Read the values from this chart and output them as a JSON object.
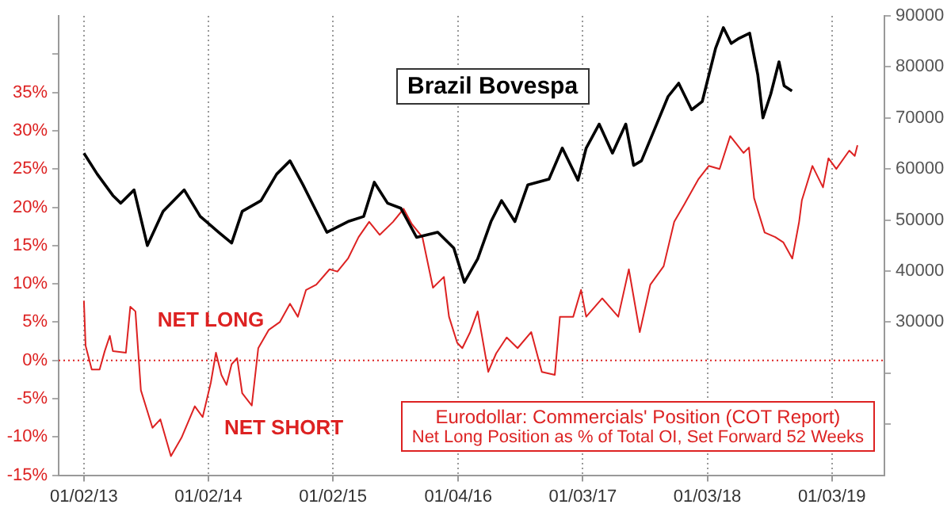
{
  "chart_data": {
    "type": "line",
    "x": [
      "2013-01-02",
      "2013-02-10",
      "2013-03-28",
      "2013-04-20",
      "2013-05-29",
      "2013-07-07",
      "2013-08-22",
      "2013-10-23",
      "2013-12-09",
      "2014-02-01",
      "2014-03-11",
      "2014-04-11",
      "2014-06-05",
      "2014-07-21",
      "2014-08-29",
      "2014-10-06",
      "2014-12-15",
      "2015-02-15",
      "2015-04-02",
      "2015-05-03",
      "2015-06-11",
      "2015-07-20",
      "2015-09-04",
      "2015-11-05",
      "2015-12-22",
      "2016-01-22",
      "2016-03-01",
      "2016-04-09",
      "2016-05-10",
      "2016-06-18",
      "2016-07-26",
      "2016-09-26",
      "2016-11-04",
      "2016-12-20",
      "2017-01-13",
      "2017-02-20",
      "2017-03-31",
      "2017-05-09",
      "2017-06-01",
      "2017-06-24",
      "2017-08-02",
      "2017-09-10",
      "2017-10-11",
      "2017-11-18",
      "2017-12-19",
      "2018-01-27",
      "2018-02-19",
      "2018-03-14",
      "2018-04-06",
      "2018-05-07",
      "2018-05-31",
      "2018-06-15",
      "2018-07-08",
      "2018-08-01",
      "2018-08-16",
      "2018-09-08"
    ],
    "series": [
      {
        "name": "Brazil Bovespa",
        "color": "#000000",
        "axis": "y2",
        "values": [
          63100,
          59000,
          54800,
          53300,
          55900,
          45000,
          51700,
          55900,
          50700,
          47600,
          45500,
          51700,
          53800,
          59000,
          61600,
          56900,
          47600,
          49700,
          50700,
          57400,
          53300,
          52300,
          46600,
          47600,
          44500,
          37800,
          42400,
          49700,
          53800,
          49700,
          56900,
          58000,
          64100,
          57800,
          64100,
          68800,
          63100,
          68800,
          60700,
          61600,
          67900,
          74200,
          76800,
          71600,
          73200,
          83600,
          87700,
          84600,
          85600,
          86600,
          78400,
          70000,
          74700,
          81000,
          76300,
          75300
        ]
      },
      {
        "name": "Eurodollar: Commercials' Position (COT Report)",
        "color": "#dd2222",
        "axis": "y",
        "x": [
          "2013-01-02",
          "2013-01-07",
          "2013-01-25",
          "2013-02-17",
          "2013-03-04",
          "2013-03-19",
          "2013-03-28",
          "2013-05-05",
          "2013-05-18",
          "2013-06-02",
          "2013-06-18",
          "2013-07-22",
          "2013-08-14",
          "2013-09-14",
          "2013-10-15",
          "2013-11-23",
          "2013-12-16",
          "2014-01-09",
          "2014-01-24",
          "2014-02-09",
          "2014-02-24",
          "2014-03-11",
          "2014-03-27",
          "2014-04-11",
          "2014-05-09",
          "2014-05-28",
          "2014-06-28",
          "2014-07-30",
          "2014-08-29",
          "2014-09-21",
          "2014-10-15",
          "2014-11-14",
          "2014-12-23",
          "2015-01-15",
          "2015-02-15",
          "2015-03-18",
          "2015-04-18",
          "2015-05-19",
          "2015-06-27",
          "2015-07-28",
          "2015-08-21",
          "2015-09-21",
          "2015-10-22",
          "2015-11-23",
          "2015-12-08",
          "2016-01-01",
          "2016-01-16",
          "2016-02-08",
          "2016-03-01",
          "2016-04-01",
          "2016-04-24",
          "2016-05-25",
          "2016-06-26",
          "2016-08-05",
          "2016-09-05",
          "2016-10-13",
          "2016-10-28",
          "2016-12-06",
          "2016-12-29",
          "2017-01-13",
          "2017-03-01",
          "2017-04-17",
          "2017-05-18",
          "2017-06-19",
          "2017-07-20",
          "2017-08-28",
          "2017-09-28",
          "2017-10-29",
          "2017-12-07",
          "2018-01-07",
          "2018-02-08",
          "2018-03-11",
          "2018-04-19",
          "2018-05-05",
          "2018-05-20",
          "2018-06-20",
          "2018-07-21",
          "2018-08-14",
          "2018-09-09",
          "2018-09-29",
          "2018-10-07",
          "2018-11-07",
          "2018-12-08",
          "2018-12-24",
          "2019-01-16",
          "2019-02-23",
          "2019-03-11",
          "2019-03-19"
        ],
        "values": [
          7.8,
          1.9,
          -1.2,
          -1.2,
          1.2,
          3.2,
          1.2,
          1.0,
          7.0,
          6.4,
          -3.9,
          -8.8,
          -7.7,
          -12.5,
          -10.1,
          -6.0,
          -7.4,
          -2.9,
          1.0,
          -1.9,
          -3.2,
          -0.5,
          0.3,
          -4.3,
          -5.9,
          1.6,
          4.0,
          5.0,
          7.4,
          5.7,
          9.2,
          9.9,
          11.9,
          11.6,
          13.3,
          16.1,
          18.1,
          16.4,
          18.1,
          19.8,
          17.8,
          16.1,
          9.5,
          10.9,
          5.7,
          2.3,
          1.6,
          3.7,
          6.4,
          -1.5,
          0.9,
          3.0,
          1.6,
          3.7,
          -1.5,
          -1.9,
          5.7,
          5.7,
          9.2,
          5.7,
          8.1,
          5.7,
          11.9,
          3.7,
          9.9,
          12.3,
          18.1,
          20.5,
          23.6,
          25.4,
          25.0,
          29.3,
          27.1,
          27.8,
          21.2,
          16.7,
          16.1,
          15.4,
          13.3,
          18.1,
          20.9,
          25.4,
          22.6,
          26.4,
          25.0,
          27.4,
          26.7,
          28.1
        ]
      }
    ],
    "xlim": [
      "2012-10-20",
      "2019-06-06"
    ],
    "xticks": [
      {
        "value": "2013-01-02",
        "label": "01/02/13"
      },
      {
        "value": "2014-01-02",
        "label": "01/02/14"
      },
      {
        "value": "2015-01-02",
        "label": "01/02/15"
      },
      {
        "value": "2016-01-04",
        "label": "01/04/16"
      },
      {
        "value": "2017-01-03",
        "label": "01/03/17"
      },
      {
        "value": "2018-01-03",
        "label": "01/03/18"
      },
      {
        "value": "2019-01-03",
        "label": "01/03/19"
      }
    ],
    "ylim": [
      -15,
      45
    ],
    "yticks": [
      {
        "value": -15,
        "label": "-15%"
      },
      {
        "value": -10,
        "label": "-10%"
      },
      {
        "value": -5,
        "label": "-5%"
      },
      {
        "value": 0,
        "label": "0%"
      },
      {
        "value": 5,
        "label": "5%"
      },
      {
        "value": 10,
        "label": "10%"
      },
      {
        "value": 15,
        "label": "15%"
      },
      {
        "value": 20,
        "label": "20%"
      },
      {
        "value": 25,
        "label": "25%"
      },
      {
        "value": 30,
        "label": "30%"
      },
      {
        "value": 35,
        "label": "35%"
      },
      {
        "value": 40,
        "label": null
      }
    ],
    "y2lim": [
      0,
      90000
    ],
    "y2ticks": [
      {
        "value": 10000,
        "label": null
      },
      {
        "value": 20000,
        "label": null
      },
      30000,
      40000,
      50000,
      60000,
      70000,
      80000,
      90000
    ],
    "grid": "x",
    "ref_lines": [
      {
        "axis": "y",
        "value": 0,
        "color": "#dd2222",
        "line_style": "dotted"
      }
    ],
    "annotations": [
      "NET LONG",
      "NET SHORT",
      "Net Long Position as % of Total OI, Set Forward 52 Weeks"
    ]
  }
}
